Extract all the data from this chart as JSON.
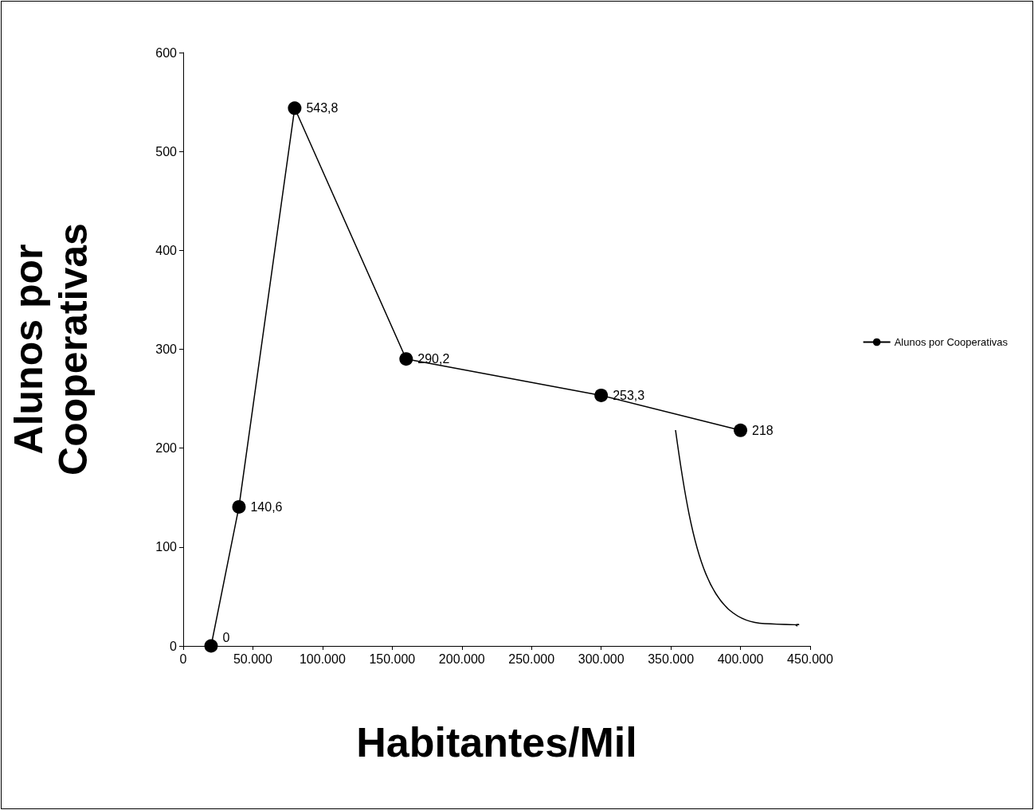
{
  "chart_data": {
    "type": "line",
    "xlabel": "Habitantes/Mil",
    "ylabel": "Alunos por Cooperativas",
    "x": [
      20000,
      40000,
      80000,
      160000,
      300000,
      400000
    ],
    "series": [
      {
        "name": "Alunos por Cooperativas",
        "color": "#000000",
        "values": [
          0,
          140.6,
          543.8,
          290.2,
          253.3,
          218
        ],
        "value_labels": [
          "0",
          "140,6",
          "543,8",
          "290,2",
          "253,3",
          "218"
        ]
      }
    ],
    "xlim": [
      0,
      450000
    ],
    "xticks": [
      0,
      {
        "value": 50000,
        "label": "50.000"
      },
      {
        "value": 100000,
        "label": "100.000"
      },
      {
        "value": 150000,
        "label": "150.000"
      },
      {
        "value": 200000,
        "label": "200.000"
      },
      {
        "value": 250000,
        "label": "250.000"
      },
      {
        "value": 300000,
        "label": "300.000"
      },
      {
        "value": 350000,
        "label": "350.000"
      },
      {
        "value": 400000,
        "label": "400.000"
      },
      {
        "value": 450000,
        "label": "450.000"
      }
    ],
    "ylim": [
      0,
      600
    ],
    "yticks": [
      0,
      100,
      200,
      300,
      400,
      500,
      600
    ],
    "grid": false,
    "legend": "right",
    "marker": "circle",
    "line_style": "solid"
  }
}
